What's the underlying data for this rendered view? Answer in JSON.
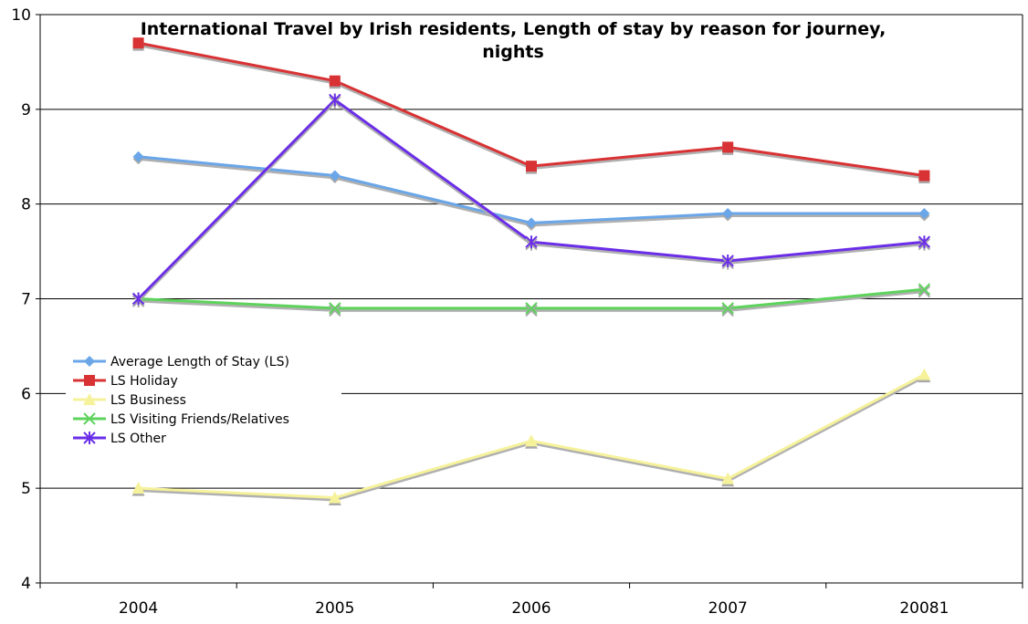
{
  "chart_data": {
    "type": "line",
    "title_lines": [
      "International Travel by Irish residents, Length of stay by reason for journey,",
      "nights"
    ],
    "categories": [
      "2004",
      "2005",
      "2006",
      "2007",
      "20081"
    ],
    "ylim": [
      4,
      10
    ],
    "yticks": [
      "4",
      "5",
      "6",
      "7",
      "8",
      "9",
      "10"
    ],
    "grid": true,
    "legend_position": "left",
    "series": [
      {
        "name": "Average Length of Stay (LS)",
        "values": [
          8.5,
          8.3,
          7.8,
          7.9,
          7.9
        ],
        "color": "#6aa6e8",
        "marker": "diamond"
      },
      {
        "name": "LS Holiday",
        "values": [
          9.7,
          9.3,
          8.4,
          8.6,
          8.3
        ],
        "color": "#d93234",
        "marker": "square"
      },
      {
        "name": "LS Business",
        "values": [
          5.0,
          4.9,
          5.5,
          5.1,
          6.2
        ],
        "color": "#f6f29b",
        "marker": "triangle"
      },
      {
        "name": "LS Visiting Friends/Relatives",
        "values": [
          7.0,
          6.9,
          6.9,
          6.9,
          7.1
        ],
        "color": "#5ed35c",
        "marker": "x"
      },
      {
        "name": "LS Other",
        "values": [
          7.0,
          9.1,
          7.6,
          7.4,
          7.6
        ],
        "color": "#6b2ee8",
        "marker": "star"
      }
    ]
  }
}
